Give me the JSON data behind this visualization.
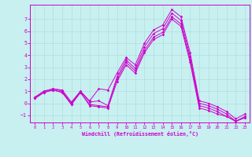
{
  "background_color": "#c8f0f0",
  "grid_color": "#b0dede",
  "line_color": "#cc00cc",
  "xlabel": "Windchill (Refroidissement éolien,°C)",
  "xlim": [
    -0.5,
    23.5
  ],
  "ylim": [
    -1.6,
    8.2
  ],
  "yticks": [
    -1,
    0,
    1,
    2,
    3,
    4,
    5,
    6,
    7
  ],
  "xticks": [
    0,
    1,
    2,
    3,
    4,
    5,
    6,
    7,
    8,
    9,
    10,
    11,
    12,
    13,
    14,
    15,
    16,
    17,
    18,
    19,
    20,
    21,
    22,
    23
  ],
  "lines": [
    [
      0.5,
      1.0,
      1.2,
      1.1,
      0.1,
      1.0,
      0.2,
      1.2,
      1.1,
      2.5,
      3.8,
      3.2,
      5.0,
      6.1,
      6.5,
      7.8,
      7.2,
      4.2,
      0.2,
      0.0,
      -0.3,
      -0.7,
      -1.3,
      -0.9
    ],
    [
      0.5,
      1.0,
      1.2,
      1.0,
      0.0,
      1.0,
      0.1,
      0.2,
      -0.2,
      2.2,
      3.6,
      2.9,
      4.7,
      5.8,
      6.2,
      7.5,
      6.9,
      3.9,
      0.0,
      -0.2,
      -0.5,
      -0.9,
      -1.5,
      -1.1
    ],
    [
      0.4,
      0.9,
      1.1,
      0.9,
      -0.1,
      0.9,
      -0.1,
      -0.2,
      -0.3,
      2.0,
      3.4,
      2.7,
      4.4,
      5.5,
      5.9,
      7.2,
      6.6,
      3.6,
      -0.2,
      -0.4,
      -0.7,
      -1.1,
      -1.5,
      -1.2
    ],
    [
      0.4,
      0.9,
      1.1,
      0.9,
      -0.1,
      0.9,
      -0.2,
      -0.3,
      -0.4,
      1.8,
      3.2,
      2.5,
      4.2,
      5.3,
      5.7,
      7.0,
      6.4,
      3.4,
      -0.4,
      -0.6,
      -0.9,
      -1.1,
      -1.5,
      -1.2
    ]
  ]
}
